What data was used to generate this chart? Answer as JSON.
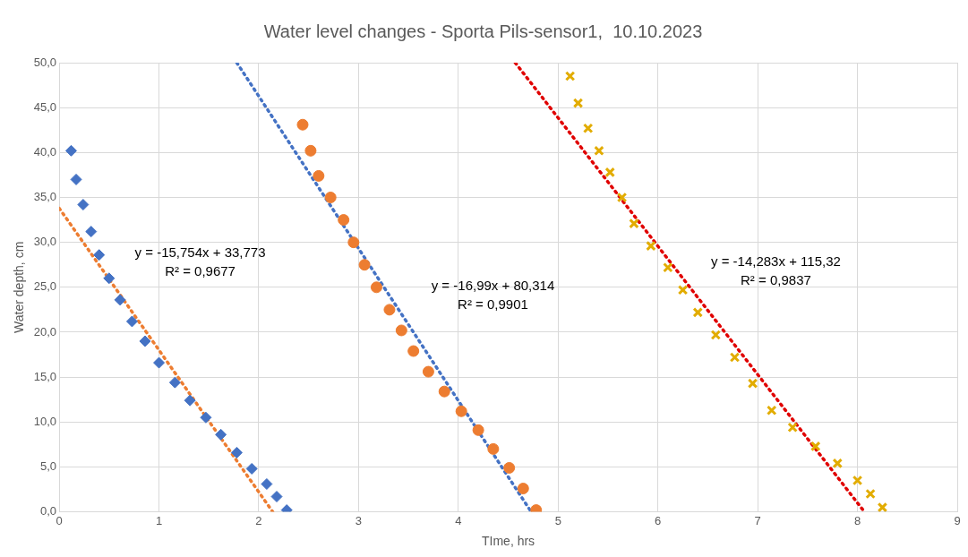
{
  "chart_data": {
    "type": "scatter",
    "title": "Water level changes - Sporta Pils-sensor1,  10.10.2023",
    "xlabel": "TIme, hrs",
    "ylabel": "Water depth, cm",
    "xlim": [
      0,
      9
    ],
    "xticks": [
      0,
      1,
      2,
      3,
      4,
      5,
      6,
      7,
      8,
      9
    ],
    "ylim": [
      0,
      50
    ],
    "yticks": [
      {
        "value": 0,
        "label": "0,0"
      },
      {
        "value": 5,
        "label": "5,0"
      },
      {
        "value": 10,
        "label": "10,0"
      },
      {
        "value": 15,
        "label": "15,0"
      },
      {
        "value": 20,
        "label": "20,0"
      },
      {
        "value": 25,
        "label": "25,0"
      },
      {
        "value": 30,
        "label": "30,0"
      },
      {
        "value": 35,
        "label": "35,0"
      },
      {
        "value": 40,
        "label": "40,0"
      },
      {
        "value": 45,
        "label": "45,0"
      },
      {
        "value": 50,
        "label": "50,0"
      }
    ],
    "grid": true,
    "legend": false,
    "series": [
      {
        "type": "scatter",
        "marker": "diamond",
        "color": "#4472c4",
        "x": [
          0.12,
          0.17,
          0.24,
          0.32,
          0.4,
          0.5,
          0.61,
          0.73,
          0.86,
          1.0,
          1.16,
          1.31,
          1.47,
          1.62,
          1.78,
          1.93,
          2.08,
          2.18,
          2.28
        ],
        "values": [
          40.2,
          37.0,
          34.2,
          31.2,
          28.6,
          26.0,
          23.6,
          21.2,
          19.0,
          16.6,
          14.4,
          12.4,
          10.5,
          8.6,
          6.6,
          4.8,
          3.1,
          1.7,
          0.2
        ]
      },
      {
        "type": "scatter",
        "marker": "circle",
        "color": "#ed7d31",
        "x": [
          2.44,
          2.52,
          2.6,
          2.72,
          2.85,
          2.95,
          3.06,
          3.18,
          3.31,
          3.43,
          3.55,
          3.7,
          3.86,
          4.03,
          4.2,
          4.35,
          4.51,
          4.65,
          4.78
        ],
        "values": [
          43.1,
          40.2,
          37.4,
          35.0,
          32.5,
          30.0,
          27.5,
          25.0,
          22.5,
          20.2,
          17.9,
          15.6,
          13.4,
          11.2,
          9.1,
          7.0,
          4.9,
          2.6,
          0.2
        ]
      },
      {
        "type": "scatter",
        "marker": "cross",
        "color": "#e2ac00",
        "x": [
          5.12,
          5.2,
          5.3,
          5.41,
          5.52,
          5.64,
          5.76,
          5.93,
          6.1,
          6.25,
          6.4,
          6.58,
          6.77,
          6.95,
          7.14,
          7.35,
          7.58,
          7.8,
          8.0,
          8.13,
          8.25
        ],
        "values": [
          48.5,
          45.5,
          42.7,
          40.2,
          37.8,
          35.0,
          32.1,
          29.6,
          27.2,
          24.7,
          22.2,
          19.7,
          17.2,
          14.3,
          11.3,
          9.4,
          7.3,
          5.4,
          3.5,
          2.0,
          0.5
        ]
      },
      {
        "type": "line",
        "marker": "none",
        "line_style": "dotted",
        "color": "#ed7d31",
        "x": [
          0,
          2.14
        ],
        "values": [
          33.8,
          0
        ]
      },
      {
        "type": "line",
        "marker": "none",
        "line_style": "dotted",
        "color": "#4472c4",
        "x": [
          1.78,
          4.73
        ],
        "values": [
          50,
          0
        ]
      },
      {
        "type": "line",
        "marker": "none",
        "line_style": "dotted",
        "color": "#e00000",
        "x": [
          4.57,
          8.07
        ],
        "values": [
          50,
          0
        ]
      }
    ],
    "annotations": [
      "y = -15,754x + 33,773",
      "R² = 0,9677",
      "y = -16,99x + 80,314",
      "R² = 0,9901",
      "y = -14,283x + 115,32",
      "R² = 0,9837"
    ]
  }
}
